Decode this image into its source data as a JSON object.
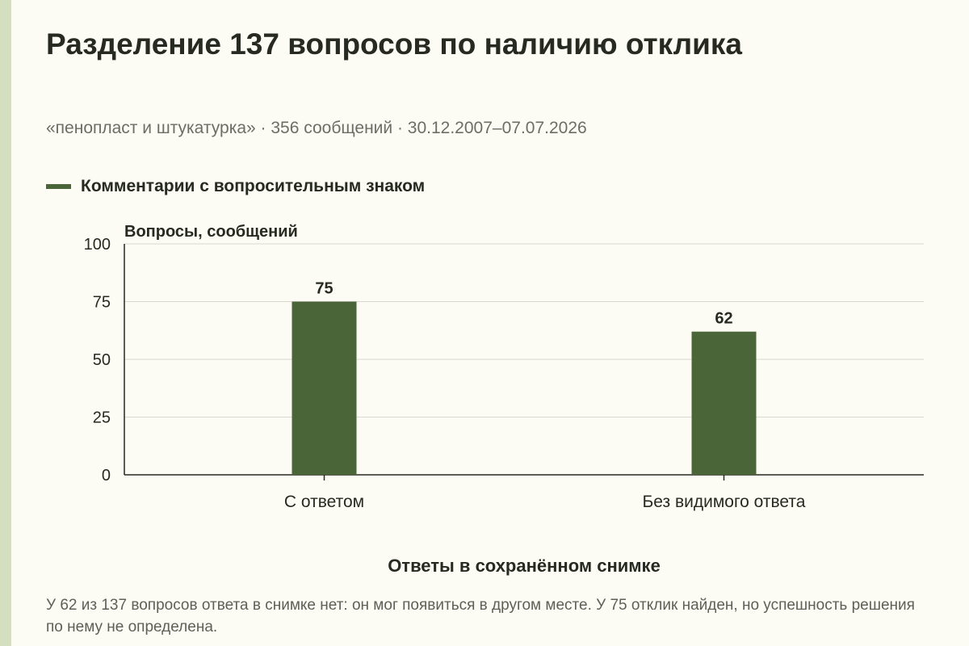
{
  "chart_data": {
    "type": "bar",
    "title": "Разделение 137 вопросов по наличию отклика",
    "subtitle": "«пенопласт и штукатурка» · 356 сообщений · 30.12.2007–07.07.2026",
    "ylabel": "Вопросы, сообщений",
    "xlabel": "Ответы в сохранённом снимке",
    "ylim": [
      0,
      100
    ],
    "yticks": [
      "0",
      "25",
      "50",
      "75",
      "100"
    ],
    "categories": [
      "С ответом",
      "Без видимого ответа"
    ],
    "series": [
      {
        "name": "Комментарии с вопросительным знаком",
        "values": [
          75,
          62
        ],
        "labels": [
          "75",
          "62"
        ]
      }
    ],
    "grid": true,
    "legend_position": "top-left"
  },
  "colors": {
    "bar": "#4a6638",
    "accent_stripe": "#d3dfbf",
    "background": "#fdfcf4"
  },
  "note": "У 62 из 137 вопросов ответа в снимке нет: он мог появиться в другом месте. У 75 отклик найден, но успешность решения по нему не определена."
}
